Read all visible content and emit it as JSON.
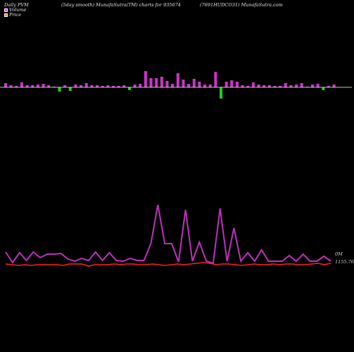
{
  "header": {
    "left": "Daily PVM",
    "middle": "(5day smooth) MunafaSutra(TM) charts for 935674",
    "right": "(7691HUDCO31) MunafaSutra.com"
  },
  "legend": [
    {
      "label": "Volume",
      "color": "#e040e0"
    },
    {
      "label": "Price",
      "color": "#ff8c1a"
    }
  ],
  "labels": {
    "volume_last": "0M",
    "price_last": "1155.76"
  },
  "colors": {
    "volume_up": "#cc33cc",
    "volume_down": "#22cc22",
    "volume_line": "#c030c0",
    "price_line": "#ff2020",
    "baseline": "#ffffff"
  },
  "chart_data": {
    "type": "bar+line",
    "bars": {
      "direction": [
        1,
        1,
        1,
        1,
        1,
        1,
        1,
        1,
        1,
        1,
        -1,
        1,
        -1,
        1,
        1,
        1,
        1,
        1,
        1,
        1,
        1,
        1,
        1,
        -1,
        1,
        1,
        1,
        1,
        1,
        1,
        1,
        1,
        1,
        1,
        1,
        1,
        1,
        1,
        1,
        1,
        -1,
        1,
        1,
        1,
        1,
        1,
        1,
        1,
        1,
        1,
        1,
        1,
        1,
        1,
        1,
        1,
        1,
        1,
        1,
        -1,
        1,
        1
      ],
      "values": [
        6,
        3,
        2,
        7,
        3,
        3,
        4,
        5,
        3,
        1,
        6,
        3,
        5,
        4,
        3,
        6,
        3,
        3,
        2,
        3,
        2,
        2,
        3,
        4,
        4,
        5,
        23,
        13,
        13,
        15,
        9,
        5,
        20,
        11,
        5,
        12,
        8,
        4,
        4,
        22,
        16,
        8,
        10,
        8,
        3,
        2,
        7,
        4,
        3,
        3,
        2,
        2,
        6,
        3,
        4,
        6,
        1,
        4,
        5,
        4,
        2,
        4
      ]
    },
    "volume_line": [
      18,
      3,
      17,
      6,
      18,
      10,
      15,
      15,
      16,
      8,
      5,
      9,
      6,
      18,
      6,
      17,
      6,
      5,
      9,
      6,
      6,
      30,
      85,
      30,
      30,
      4,
      78,
      5,
      32,
      5,
      2,
      80,
      5,
      52,
      5,
      17,
      5,
      21,
      5,
      5,
      5,
      13,
      5,
      15,
      5,
      5,
      12,
      5
    ],
    "price_line": [
      6,
      5,
      4,
      5,
      4,
      5,
      5,
      5,
      5,
      4,
      6,
      6,
      6,
      3,
      5,
      5,
      5,
      6,
      5,
      6,
      6,
      5,
      5,
      6,
      5,
      4,
      5,
      6,
      5,
      6,
      7,
      8,
      7,
      5,
      6,
      6,
      5,
      4,
      5,
      6,
      5,
      5,
      6,
      5,
      6,
      6,
      5,
      5,
      6,
      7,
      5,
      7
    ]
  }
}
